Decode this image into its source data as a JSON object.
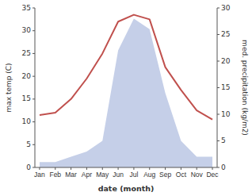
{
  "chart_data": {
    "type": "line",
    "xlabel": "date (month)",
    "ylabel": "max temp (C)",
    "y2label": "med. precipitation (kg/m2)",
    "categories": [
      "Jan",
      "Feb",
      "Mar",
      "Apr",
      "May",
      "Jun",
      "Jul",
      "Aug",
      "Sep",
      "Oct",
      "Nov",
      "Dec"
    ],
    "series": [
      {
        "type": "area",
        "axis": "y2",
        "color": "#c5cfe8",
        "values": [
          1,
          1,
          2,
          3,
          5,
          22,
          28,
          26,
          14,
          5,
          2,
          2
        ]
      },
      {
        "type": "line",
        "color": "#c0504d",
        "values": [
          11.5,
          12.0,
          15.0,
          19.5,
          25.0,
          32.0,
          33.5,
          32.5,
          22.0,
          17.0,
          12.5,
          10.5
        ]
      }
    ],
    "ylim": [
      0,
      35
    ],
    "yticks": [
      0,
      5,
      10,
      15,
      20,
      25,
      30,
      35
    ],
    "y2lim": [
      0,
      30
    ],
    "y2ticks": [
      0,
      5,
      10,
      15,
      20,
      25,
      30
    ],
    "grid": false
  }
}
